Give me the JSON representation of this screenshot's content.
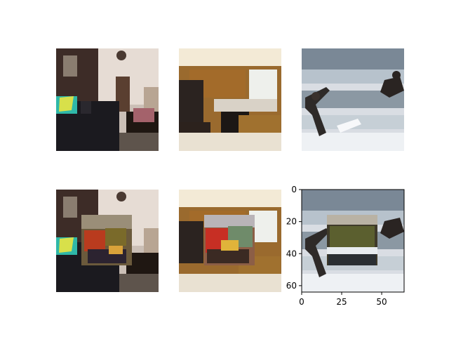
{
  "figure": {
    "rows": [
      {
        "row_id": "original",
        "tiles": [
          {
            "scene": "living-room",
            "patch": null
          },
          {
            "scene": "kitchen",
            "patch": null
          },
          {
            "scene": "surf",
            "patch": null
          }
        ]
      },
      {
        "row_id": "patched",
        "tiles": [
          {
            "scene": "living-room",
            "patch": "blend"
          },
          {
            "scene": "kitchen",
            "patch": "blend"
          },
          {
            "scene": "surf",
            "patch": "blend"
          }
        ]
      }
    ]
  },
  "axes": {
    "x_ticks": [
      0,
      25,
      50
    ],
    "y_ticks": [
      0,
      20,
      40,
      60
    ],
    "x_range": [
      0,
      64
    ],
    "y_range": [
      0,
      64
    ]
  },
  "colors": {
    "axis": "#000000",
    "background": "#ffffff"
  }
}
